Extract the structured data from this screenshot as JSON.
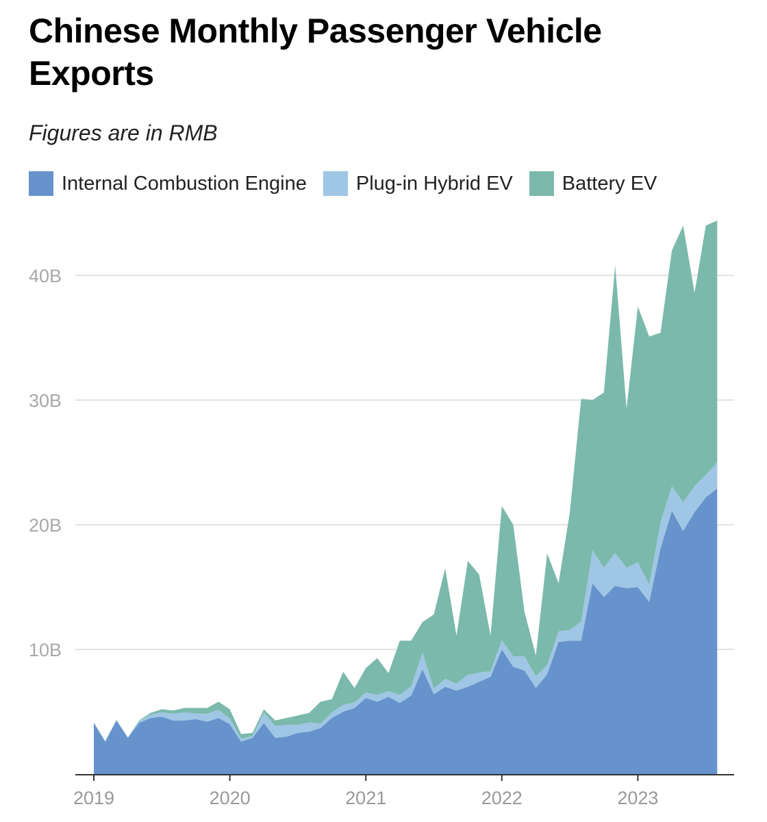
{
  "title": "Chinese Monthly Passenger Vehicle Exports",
  "subtitle": "Figures are in RMB",
  "colors": {
    "ice": "#6693cc",
    "phev": "#9fc6e4",
    "bev": "#7ab9ab",
    "grid": "#e2e2e2",
    "axis": "#333333",
    "tick_text": "#a8a8a8"
  },
  "legend": [
    {
      "label": "Internal Combustion Engine",
      "color": "#6693cc"
    },
    {
      "label": "Plug-in Hybrid EV",
      "color": "#9fc6e4"
    },
    {
      "label": "Battery EV",
      "color": "#7ab9ab"
    }
  ],
  "chart_data": {
    "type": "area",
    "stacked": true,
    "title": "Chinese Monthly Passenger Vehicle Exports",
    "subtitle": "Figures are in RMB",
    "xlabel": "",
    "ylabel": "",
    "ylim": [
      0,
      45
    ],
    "y_unit": "B",
    "y_ticks": [
      {
        "value": 10,
        "label": "10B"
      },
      {
        "value": 20,
        "label": "20B"
      },
      {
        "value": 30,
        "label": "30B"
      },
      {
        "value": 40,
        "label": "40B"
      }
    ],
    "x_ticks": [
      {
        "value": "2019-01",
        "label": "2019"
      },
      {
        "value": "2020-01",
        "label": "2020"
      },
      {
        "value": "2021-01",
        "label": "2021"
      },
      {
        "value": "2022-01",
        "label": "2022"
      },
      {
        "value": "2023-01",
        "label": "2023"
      }
    ],
    "x": [
      "2019-01",
      "2019-02",
      "2019-03",
      "2019-04",
      "2019-05",
      "2019-06",
      "2019-07",
      "2019-08",
      "2019-09",
      "2019-10",
      "2019-11",
      "2019-12",
      "2020-01",
      "2020-02",
      "2020-03",
      "2020-04",
      "2020-05",
      "2020-06",
      "2020-07",
      "2020-08",
      "2020-09",
      "2020-10",
      "2020-11",
      "2020-12",
      "2021-01",
      "2021-02",
      "2021-03",
      "2021-04",
      "2021-05",
      "2021-06",
      "2021-07",
      "2021-08",
      "2021-09",
      "2021-10",
      "2021-11",
      "2021-12",
      "2022-01",
      "2022-02",
      "2022-03",
      "2022-04",
      "2022-05",
      "2022-06",
      "2022-07",
      "2022-08",
      "2022-09",
      "2022-10",
      "2022-11",
      "2022-12",
      "2023-01",
      "2023-02",
      "2023-03",
      "2023-04",
      "2023-05",
      "2023-06",
      "2023-07",
      "2023-08"
    ],
    "grid": true,
    "legend_position": "top",
    "series": [
      {
        "name": "Internal Combustion Engine",
        "values": [
          4.1,
          2.6,
          4.3,
          2.9,
          4.1,
          4.5,
          4.6,
          4.3,
          4.3,
          4.4,
          4.2,
          4.5,
          4.0,
          2.6,
          2.9,
          4.1,
          2.9,
          3.0,
          3.3,
          3.4,
          3.7,
          4.5,
          5.0,
          5.3,
          6.1,
          5.8,
          6.2,
          5.7,
          6.3,
          8.4,
          6.4,
          7.0,
          6.7,
          7.0,
          7.4,
          7.8,
          10.0,
          8.6,
          8.3,
          6.9,
          8.0,
          10.6,
          10.7,
          10.7,
          15.3,
          14.2,
          15.1,
          14.9,
          15.0,
          13.8,
          18.1,
          21.1,
          19.5,
          21.0,
          22.2,
          22.9
        ]
      },
      {
        "name": "Plug-in Hybrid EV",
        "values": [
          0.05,
          0.05,
          0.05,
          0.05,
          0.15,
          0.25,
          0.35,
          0.55,
          0.65,
          0.45,
          0.65,
          0.65,
          0.45,
          0.25,
          0.15,
          0.85,
          0.95,
          0.95,
          0.65,
          0.75,
          0.35,
          0.45,
          0.55,
          0.45,
          0.45,
          0.55,
          0.45,
          0.65,
          0.75,
          1.35,
          0.45,
          0.65,
          0.55,
          0.95,
          0.75,
          0.45,
          0.75,
          0.85,
          1.15,
          0.95,
          0.75,
          0.85,
          0.85,
          1.55,
          2.65,
          2.35,
          2.65,
          1.65,
          2.0,
          1.4,
          2.1,
          2.0,
          2.3,
          2.1,
          1.8,
          2.1
        ]
      },
      {
        "name": "Battery EV",
        "values": [
          0,
          0,
          0,
          0,
          0.05,
          0.15,
          0.25,
          0.25,
          0.35,
          0.45,
          0.45,
          0.65,
          0.75,
          0.35,
          0.25,
          0.25,
          0.45,
          0.55,
          0.75,
          0.75,
          1.75,
          1.05,
          2.65,
          1.15,
          1.95,
          2.95,
          1.45,
          4.35,
          3.65,
          2.45,
          5.95,
          8.85,
          3.85,
          9.15,
          7.85,
          2.85,
          10.75,
          10.55,
          3.55,
          1.65,
          8.95,
          3.85,
          9.45,
          17.85,
          12.05,
          14.05,
          23.05,
          12.75,
          20.5,
          19.9,
          15.2,
          18.9,
          22.2,
          15.5,
          20.0,
          19.4
        ]
      }
    ]
  }
}
